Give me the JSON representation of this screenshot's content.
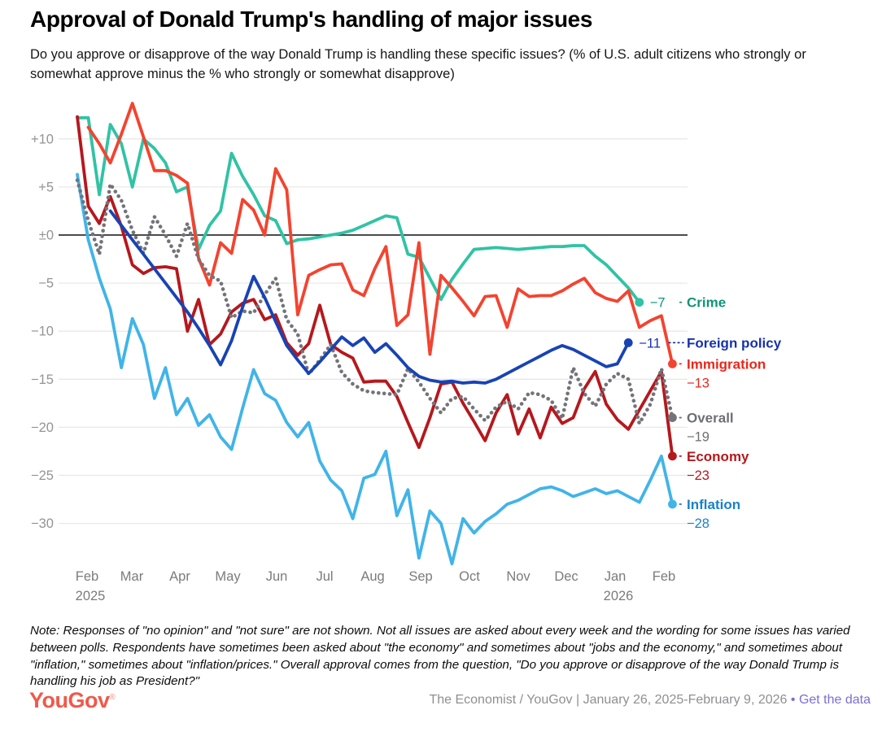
{
  "header": {
    "title": "Approval of Donald Trump's handling of major issues",
    "subtitle": "Do you approve or disapprove of the way Donald Trump is handling these specific issues? (% of U.S. adult citizens who strongly or somewhat approve minus the % who strongly or somewhat disapprove)"
  },
  "chart_data": {
    "type": "line",
    "x_unit": "weekly polls, Jan 26 2025 – Feb 9 2026",
    "ylim": [
      -36,
      14
    ],
    "grid": "horizontal",
    "y_ticks": [
      {
        "v": 10,
        "label": "+10"
      },
      {
        "v": 5,
        "label": "+5"
      },
      {
        "v": 0,
        "label": "±0"
      },
      {
        "v": -5,
        "label": "−5"
      },
      {
        "v": -10,
        "label": "−10"
      },
      {
        "v": -15,
        "label": "−15"
      },
      {
        "v": -20,
        "label": "−20"
      },
      {
        "v": -25,
        "label": "−25"
      },
      {
        "v": -30,
        "label": "−30"
      }
    ],
    "x_ticks": [
      {
        "label": "Feb",
        "year": "2025"
      },
      {
        "label": "Mar"
      },
      {
        "label": "Apr"
      },
      {
        "label": "May"
      },
      {
        "label": "Jun"
      },
      {
        "label": "Jul"
      },
      {
        "label": "Aug"
      },
      {
        "label": "Sep"
      },
      {
        "label": "Oct"
      },
      {
        "label": "Nov"
      },
      {
        "label": "Dec"
      },
      {
        "label": "Jan",
        "year": "2026"
      },
      {
        "label": "Feb"
      }
    ],
    "series": [
      {
        "id": "crime",
        "label": "Crime",
        "end_value": "−7",
        "color": "#30C3A4",
        "label_color": "#0E9478",
        "dotted": false,
        "two_line": false,
        "start_week": 0,
        "values": [
          12.2,
          12.2,
          4.2,
          11.5,
          9.5,
          5,
          10,
          9,
          7.5,
          4.5,
          5,
          -1.5,
          1,
          2.5,
          8.5,
          6.1,
          4.2,
          2,
          1.5,
          -0.9,
          -0.5,
          -0.4,
          -0.2,
          0,
          0.2,
          0.5,
          1,
          1.5,
          2,
          1.8,
          -2,
          -2.3,
          -4.5,
          -6.7,
          -4.6,
          -3,
          -1.5,
          -1.4,
          -1.3,
          -1.4,
          -1.5,
          -1.4,
          -1.3,
          -1.2,
          -1.2,
          -1.1,
          -1.1,
          -2.2,
          -3.1,
          -4.3,
          -5.5,
          -7
        ]
      },
      {
        "id": "inflation",
        "label": "Inflation",
        "end_value": "−28",
        "color": "#41B4E8",
        "label_color": "#1A82C8",
        "dotted": false,
        "two_line": true,
        "start_week": 0,
        "values": [
          6.3,
          -0.5,
          -4.5,
          -7.7,
          -13.8,
          -8.7,
          -11.4,
          -17,
          -13.8,
          -18.7,
          -17,
          -19.8,
          -18.7,
          -21,
          -22.3,
          -18,
          -14,
          -16.5,
          -17.2,
          -19.5,
          -21,
          -19.5,
          -23.5,
          -25.5,
          -26.6,
          -29.5,
          -25.3,
          -24.9,
          -22.5,
          -29.2,
          -26.5,
          -33.6,
          -28.7,
          -30,
          -34.2,
          -29.5,
          -31,
          -29.8,
          -29,
          -28,
          -27.6,
          -27,
          -26.4,
          -26.2,
          -26.6,
          -27.2,
          -26.8,
          -26.4,
          -26.9,
          -26.6,
          -27.2,
          -27.8,
          -25.5,
          -23,
          -28
        ]
      },
      {
        "id": "immigration",
        "label": "Immigration",
        "end_value": "−13",
        "color": "#F4432F",
        "label_color": "#E8271B",
        "dotted": false,
        "two_line": true,
        "start_week": 1,
        "values": [
          11.2,
          9.5,
          7.5,
          10.5,
          13.7,
          10.2,
          6.7,
          6.7,
          6.2,
          5.4,
          -2.4,
          -5.2,
          -0.8,
          -1.9,
          3.7,
          2.6,
          0,
          6.9,
          4.7,
          -8.3,
          -4.2,
          -3.6,
          -3.1,
          -3,
          -5.7,
          -6.3,
          -3.5,
          -1.2,
          -9.4,
          -8.3,
          -0.8,
          -12.4,
          -4.2,
          -5.5,
          -6.9,
          -8.4,
          -6.4,
          -6.3,
          -9.6,
          -5.6,
          -6.4,
          -6.3,
          -6.3,
          -5.8,
          -5.1,
          -4.5,
          -6,
          -6.6,
          -6.9,
          -5.8,
          -9.6,
          -8.9,
          -8.4,
          -13.4
        ]
      },
      {
        "id": "economy",
        "label": "Economy",
        "end_value": "−23",
        "color": "#B5181D",
        "label_color": "#B5181D",
        "dotted": false,
        "two_line": true,
        "start_week": 0,
        "values": [
          12.3,
          3,
          1.2,
          4,
          0.9,
          -3.1,
          -4,
          -3.4,
          -3.3,
          -3.5,
          -10,
          -6.7,
          -11.4,
          -10.3,
          -8,
          -7.1,
          -6.7,
          -8.8,
          -8.3,
          -11.2,
          -12.5,
          -11.3,
          -7.3,
          -11.4,
          -12.2,
          -12.8,
          -15.3,
          -15.2,
          -15.2,
          -16.8,
          -19.5,
          -22.1,
          -19,
          -15.5,
          -15.3,
          -17.5,
          -19.4,
          -21.4,
          -18.5,
          -16.6,
          -20.7,
          -18.1,
          -21.1,
          -17.9,
          -19.6,
          -19,
          -16,
          -14.2,
          -17.6,
          -19.2,
          -20.2,
          -18.2,
          -16.2,
          -14.2,
          -23
        ]
      },
      {
        "id": "overall",
        "label": "Overall",
        "end_value": "−19",
        "color": "#73747A",
        "label_color": "#6E6F75",
        "dotted": true,
        "two_line": true,
        "start_week": 0,
        "values": [
          5.7,
          1.5,
          -2,
          5.3,
          3.6,
          0.5,
          -1.9,
          1.9,
          0,
          -2.2,
          1.2,
          -2.5,
          -4.2,
          -4.8,
          -8.6,
          -7.9,
          -8.1,
          -6.2,
          -4.5,
          -8.8,
          -10.3,
          -14.5,
          -13,
          -11.4,
          -14.3,
          -15.5,
          -16.2,
          -16.4,
          -16.5,
          -16.6,
          -13.9,
          -15.3,
          -17,
          -18.5,
          -17,
          -16.8,
          -18.1,
          -19.3,
          -17.9,
          -17.3,
          -18.1,
          -16.4,
          -16.6,
          -17.2,
          -19.1,
          -13.8,
          -16.5,
          -17.8,
          -15.5,
          -14.4,
          -15,
          -19.6,
          -17.6,
          -13.9,
          -19
        ]
      },
      {
        "id": "foreign_policy",
        "label": "Foreign policy",
        "end_value": "−11",
        "color": "#1843B5",
        "label_color": "#1732A8",
        "dotted": false,
        "two_line": false,
        "start_week": 3,
        "values": [
          2.5,
          1,
          -0.5,
          -2,
          -3.5,
          -5,
          -6.5,
          -8,
          -9.7,
          -11.5,
          -13.5,
          -11,
          -7.5,
          -4.3,
          -6.5,
          -9,
          -11.5,
          -13,
          -14.4,
          -13.2,
          -11.9,
          -10.6,
          -11.5,
          -10.7,
          -12.2,
          -11.3,
          -12.5,
          -13.8,
          -14.7,
          -15.1,
          -15.3,
          -15.2,
          -15.4,
          -15.3,
          -15.4,
          -15,
          -14.4,
          -13.8,
          -13.2,
          -12.6,
          -12,
          -11.5,
          -11.9,
          -12.5,
          -13.1,
          -13.7,
          -13.4,
          -11.2
        ]
      }
    ]
  },
  "note": "Note: Responses of \"no opinion\" and \"not sure\" are not shown. Not all issues are asked about every week and the wording for some issues has varied between polls. Respondents have sometimes been asked about \"the economy\" and sometimes about \"jobs and the economy,\" and sometimes about \"inflation,\" sometimes about \"inflation/prices.\" Overall approval comes from the question, \"Do you approve or disapprove of the way Donald Trump is handling his job as President?\"",
  "footer": {
    "logo": "YouGov",
    "logo_mark": "®",
    "source": "The Economist / YouGov | January 26, 2025-February 9, 2026",
    "separator": " • ",
    "link": "Get the data"
  }
}
